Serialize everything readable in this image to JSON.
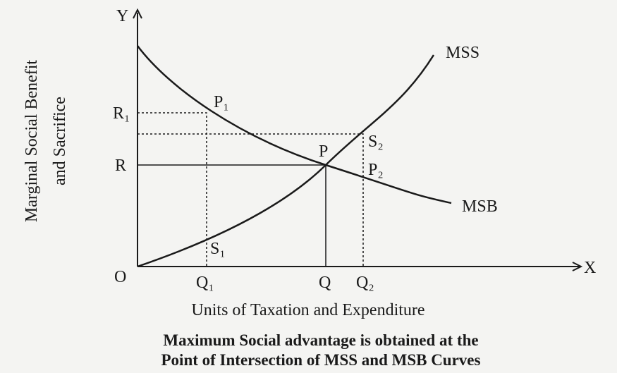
{
  "diagram": {
    "axes": {
      "y": "Y",
      "x": "X",
      "origin": "O"
    },
    "y_axis_label": [
      "Marginal Social Benefit",
      "and Sacrifice"
    ],
    "x_axis_label": "Units of Taxation and Expenditure",
    "curves": {
      "mss": "MSS",
      "msb": "MSB"
    },
    "points": {
      "p1": "P₁",
      "p": "P",
      "p2": "P₂",
      "s1": "S₁",
      "s2": "S₂"
    },
    "y_levels": {
      "r1": "R₁",
      "r": "R"
    },
    "x_levels": {
      "q1": "Q₁",
      "q": "Q",
      "q2": "Q₂"
    },
    "caption": [
      "Maximum Social advantage is obtained at the",
      "Point of Intersection of MSS and MSB Curves"
    ]
  }
}
